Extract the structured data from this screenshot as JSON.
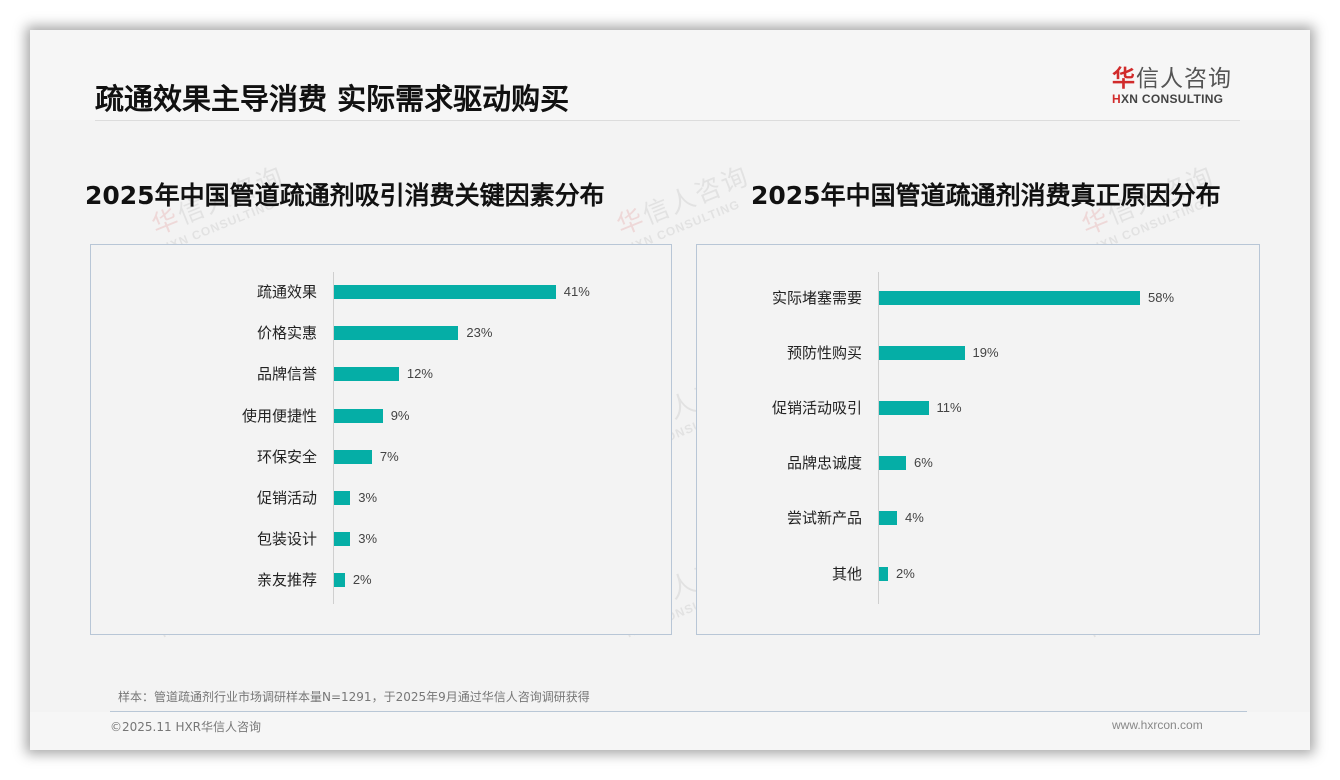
{
  "header": {
    "title": "疏通效果主导消费 实际需求驱动购买",
    "logo_cn_first": "华",
    "logo_cn_rest": "信人咨询",
    "logo_en_first": "H",
    "logo_en_rest": "XN CONSULTING"
  },
  "watermark": {
    "cn_first": "华",
    "cn_rest": "信人咨询",
    "en": "HXN CONSULTING"
  },
  "colors": {
    "bar": "#05aea6",
    "brand_red": "#d12b2b",
    "box_border": "#b8c6d6"
  },
  "chart_data": [
    {
      "type": "bar",
      "orientation": "horizontal",
      "title": "2025年中国管道疏通剂吸引消费关键因素分布",
      "categories": [
        "疏通效果",
        "价格实惠",
        "品牌信誉",
        "使用便捷性",
        "环保安全",
        "促销活动",
        "包装设计",
        "亲友推荐"
      ],
      "values": [
        41,
        23,
        12,
        9,
        7,
        3,
        3,
        2
      ],
      "labels": [
        "41%",
        "23%",
        "12%",
        "9%",
        "7%",
        "3%",
        "3%",
        "2%"
      ],
      "unit": "%",
      "xlabel": "",
      "ylabel": "",
      "grid": false,
      "legend": null
    },
    {
      "type": "bar",
      "orientation": "horizontal",
      "title": "2025年中国管道疏通剂消费真正原因分布",
      "categories": [
        "实际堵塞需要",
        "预防性购买",
        "促销活动吸引",
        "品牌忠诚度",
        "尝试新产品",
        "其他"
      ],
      "values": [
        58,
        19,
        11,
        6,
        4,
        2
      ],
      "labels": [
        "58%",
        "19%",
        "11%",
        "6%",
        "4%",
        "2%"
      ],
      "unit": "%",
      "xlabel": "",
      "ylabel": "",
      "grid": false,
      "legend": null
    }
  ],
  "footer": {
    "note": "样本：管道疏通剂行业市场调研样本量N=1291，于2025年9月通过华信人咨询调研获得",
    "copyright": "©2025.11 HXR华信人咨询",
    "website": "www.hxrcon.com"
  }
}
